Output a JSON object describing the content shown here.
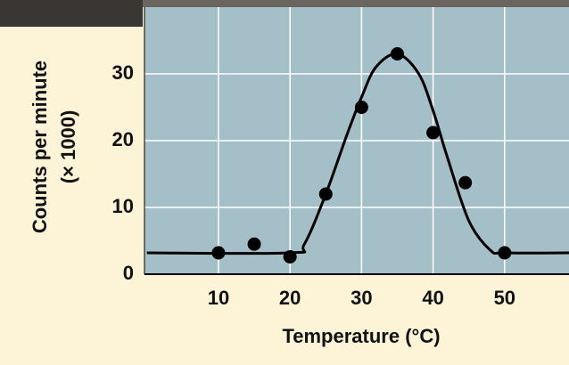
{
  "chart_data": {
    "type": "scatter",
    "xlabel": "Temperature (°C)",
    "ylabel": [
      "Counts per minute",
      "(× 1000)"
    ],
    "xlim": [
      0,
      59
    ],
    "ylim": [
      0,
      40
    ],
    "xticks": [
      10,
      20,
      30,
      40,
      50
    ],
    "yticks": [
      0,
      10,
      20,
      30
    ],
    "grid": true,
    "background": "#a4bfc8",
    "series": [
      {
        "type": "scatter",
        "color": "#000000",
        "x": [
          10,
          15,
          20,
          25,
          30,
          35,
          40,
          44.5,
          50
        ],
        "values": [
          3.2,
          4.5,
          2.6,
          12,
          25,
          33,
          21.2,
          13.7,
          3.2
        ]
      },
      {
        "type": "line",
        "color": "#000000",
        "x": [
          0,
          20,
          22,
          25,
          28,
          30,
          32,
          35,
          38,
          40,
          42,
          45,
          48,
          50,
          59
        ],
        "values": [
          3.2,
          3.2,
          4.5,
          12,
          21,
          26.5,
          31,
          33,
          30,
          24.5,
          17.5,
          8,
          3.6,
          3.2,
          3.2
        ]
      }
    ]
  }
}
